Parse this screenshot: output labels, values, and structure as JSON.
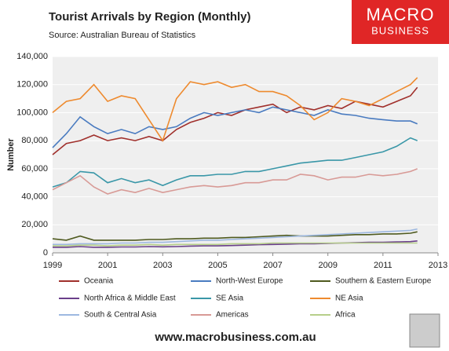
{
  "chart_data": {
    "type": "line",
    "title": "Tourist Arrivals by Region (Monthly)",
    "subtitle": "Source: Australian Bureau of Statistics",
    "y_label": "Number",
    "x": [
      1999,
      1999.5,
      2000,
      2000.5,
      2001,
      2001.5,
      2002,
      2002.5,
      2003,
      2003.5,
      2004,
      2004.5,
      2005,
      2005.5,
      2006,
      2006.5,
      2007,
      2007.5,
      2008,
      2008.5,
      2009,
      2009.5,
      2010,
      2010.5,
      2011,
      2011.5,
      2012,
      2012.25
    ],
    "xlim": [
      1999,
      2013
    ],
    "xticks": [
      1999,
      2001,
      2003,
      2005,
      2007,
      2009,
      2011,
      2013
    ],
    "ylim": [
      0,
      140000
    ],
    "yticks": [
      0,
      {
        "value": 20000,
        "label": "20,000"
      },
      {
        "value": 40000,
        "label": "40,000"
      },
      {
        "value": 60000,
        "label": "60,000"
      },
      {
        "value": 80000,
        "label": "80,000"
      },
      {
        "value": 100000,
        "label": "100,000"
      },
      {
        "value": 120000,
        "label": "120,000"
      },
      {
        "value": 140000,
        "label": "140,000"
      }
    ],
    "grid": true,
    "legend": "bottom",
    "series": [
      {
        "name": "Oceania",
        "color": "#a0302c",
        "values": [
          70000,
          78000,
          80000,
          84000,
          80000,
          82000,
          80000,
          83000,
          80000,
          88000,
          93000,
          96000,
          100000,
          98000,
          102000,
          104000,
          106000,
          100000,
          104000,
          102000,
          105000,
          103000,
          108000,
          106000,
          104000,
          108000,
          112000,
          118000
        ]
      },
      {
        "name": "North-West Europe",
        "color": "#4a7bc0",
        "values": [
          75000,
          85000,
          97000,
          90000,
          85000,
          88000,
          85000,
          90000,
          88000,
          90000,
          96000,
          100000,
          98000,
          100000,
          102000,
          100000,
          104000,
          102000,
          100000,
          98000,
          102000,
          99000,
          98000,
          96000,
          95000,
          94000,
          94000,
          92000
        ]
      },
      {
        "name": "Southern & Eastern Europe",
        "color": "#4f5a1f",
        "values": [
          10000,
          9000,
          12000,
          9000,
          9000,
          9000,
          9000,
          9500,
          9500,
          10000,
          10000,
          10500,
          10500,
          11000,
          11000,
          11500,
          12000,
          12500,
          12000,
          12000,
          12000,
          12500,
          13000,
          13000,
          13500,
          13500,
          14000,
          15000
        ]
      },
      {
        "name": "North Africa & Middle East",
        "color": "#6a3f8a",
        "values": [
          4000,
          4000,
          4500,
          4000,
          4000,
          4200,
          4200,
          4500,
          4300,
          4500,
          4800,
          5000,
          5000,
          5200,
          5500,
          5800,
          6000,
          6200,
          6500,
          6500,
          6800,
          7000,
          7200,
          7500,
          7500,
          7800,
          8000,
          8500
        ]
      },
      {
        "name": "SE Asia",
        "color": "#3a97a8",
        "values": [
          47000,
          50000,
          58000,
          57000,
          50000,
          53000,
          50000,
          52000,
          48000,
          52000,
          55000,
          55000,
          56000,
          56000,
          58000,
          58000,
          60000,
          62000,
          64000,
          65000,
          66000,
          66000,
          68000,
          70000,
          72000,
          76000,
          82000,
          80000
        ]
      },
      {
        "name": "NE Asia",
        "color": "#ee8a2e",
        "values": [
          100000,
          108000,
          110000,
          120000,
          108000,
          112000,
          110000,
          95000,
          80000,
          110000,
          122000,
          120000,
          122000,
          118000,
          120000,
          115000,
          115000,
          112000,
          105000,
          95000,
          100000,
          110000,
          108000,
          105000,
          110000,
          115000,
          120000,
          125000
        ]
      },
      {
        "name": "South & Central Asia",
        "color": "#9db8e0",
        "values": [
          6000,
          6000,
          6500,
          6500,
          6500,
          7000,
          7000,
          7500,
          7500,
          8000,
          8500,
          9000,
          9000,
          9500,
          10000,
          10500,
          11000,
          11500,
          12000,
          12500,
          13000,
          13500,
          14000,
          14500,
          15000,
          15500,
          16000,
          17000
        ]
      },
      {
        "name": "Americas",
        "color": "#d89a96",
        "values": [
          45000,
          50000,
          55000,
          47000,
          42000,
          45000,
          43000,
          46000,
          43000,
          45000,
          47000,
          48000,
          47000,
          48000,
          50000,
          50000,
          52000,
          52000,
          56000,
          55000,
          52000,
          54000,
          54000,
          56000,
          55000,
          56000,
          58000,
          60000
        ]
      },
      {
        "name": "Africa",
        "color": "#b6cf8a",
        "values": [
          5000,
          5000,
          5500,
          5500,
          5000,
          5500,
          5500,
          6000,
          5500,
          6000,
          6000,
          6000,
          6000,
          6500,
          6500,
          6500,
          7000,
          7000,
          7000,
          7000,
          7000,
          7000,
          7000,
          7000,
          7000,
          7000,
          7000,
          7000
        ]
      }
    ]
  },
  "logo": {
    "line1": "MACRO",
    "line2": "BUSINESS"
  },
  "footer": "www.macrobusiness.com.au"
}
